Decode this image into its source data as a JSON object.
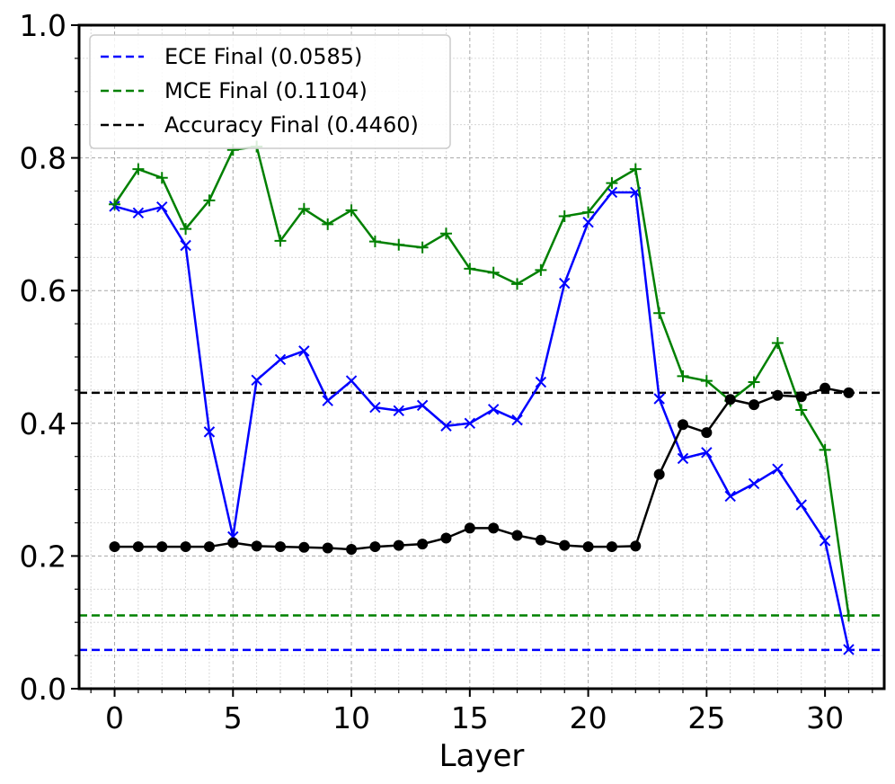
{
  "chart_data": {
    "type": "line",
    "xlabel": "Layer",
    "ylabel": "",
    "xlim": [
      -1.5,
      32.5
    ],
    "ylim": [
      0.0,
      1.0
    ],
    "xticks": [
      0,
      5,
      10,
      15,
      20,
      25,
      30
    ],
    "xtick_labels": [
      "0",
      "5",
      "10",
      "15",
      "20",
      "25",
      "30"
    ],
    "yticks": [
      0.0,
      0.2,
      0.4,
      0.6,
      0.8,
      1.0
    ],
    "ytick_labels": [
      "0.0",
      "0.2",
      "0.4",
      "0.6",
      "0.8",
      "1.0"
    ],
    "grid": true,
    "minor_grid": true,
    "legend_position": "top-left",
    "x": [
      0,
      1,
      2,
      3,
      4,
      5,
      6,
      7,
      8,
      9,
      10,
      11,
      12,
      13,
      14,
      15,
      16,
      17,
      18,
      19,
      20,
      21,
      22,
      23,
      24,
      25,
      26,
      27,
      28,
      29,
      30,
      31
    ],
    "series": [
      {
        "color": "#0000ff",
        "marker": "x",
        "values": [
          0.727,
          0.717,
          0.726,
          0.668,
          0.387,
          0.229,
          0.465,
          0.496,
          0.509,
          0.434,
          0.464,
          0.424,
          0.419,
          0.427,
          0.396,
          0.4,
          0.421,
          0.405,
          0.462,
          0.611,
          0.703,
          0.748,
          0.748,
          0.437,
          0.347,
          0.356,
          0.29,
          0.309,
          0.331,
          0.277,
          0.223,
          0.059
        ]
      },
      {
        "color": "#008000",
        "marker": "+",
        "values": [
          0.73,
          0.783,
          0.77,
          0.693,
          0.736,
          0.812,
          0.817,
          0.675,
          0.723,
          0.7,
          0.721,
          0.674,
          0.669,
          0.665,
          0.686,
          0.633,
          0.627,
          0.61,
          0.631,
          0.712,
          0.718,
          0.762,
          0.783,
          0.566,
          0.471,
          0.464,
          0.434,
          0.462,
          0.521,
          0.42,
          0.36,
          0.11
        ]
      },
      {
        "color": "#000000",
        "marker": "o",
        "values": [
          0.214,
          0.214,
          0.214,
          0.214,
          0.214,
          0.22,
          0.215,
          0.214,
          0.213,
          0.212,
          0.21,
          0.214,
          0.216,
          0.218,
          0.227,
          0.242,
          0.242,
          0.231,
          0.224,
          0.216,
          0.214,
          0.214,
          0.215,
          0.323,
          0.398,
          0.386,
          0.436,
          0.428,
          0.442,
          0.44,
          0.453,
          0.446
        ]
      }
    ],
    "hlines": [
      {
        "name": "ECE Final (0.0585)",
        "y": 0.0585,
        "color": "#0000ff",
        "style": "dashed"
      },
      {
        "name": "MCE Final (0.1104)",
        "y": 0.1104,
        "color": "#008000",
        "style": "dashed"
      },
      {
        "name": "Accuracy Final (0.4460)",
        "y": 0.446,
        "color": "#000000",
        "style": "dashed"
      }
    ]
  }
}
